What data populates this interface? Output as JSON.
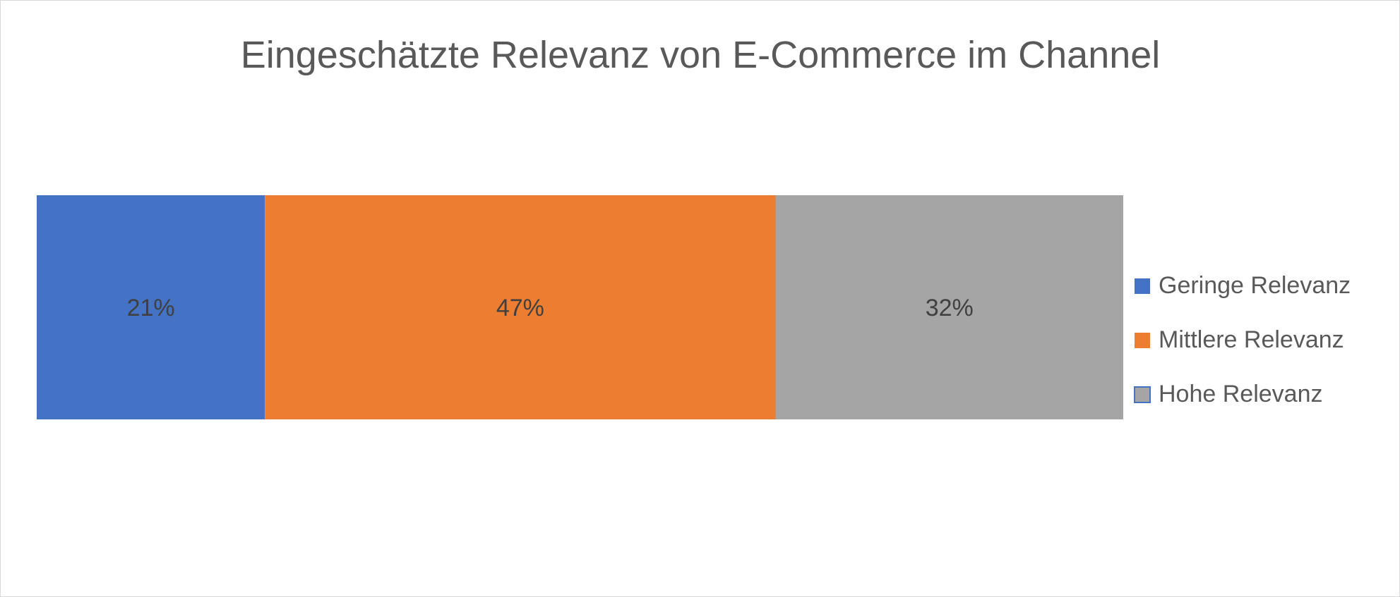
{
  "chart_data": {
    "type": "bar",
    "orientation": "horizontal",
    "stacked": "100%",
    "title": "Eingeschätzte Relevanz von E-Commerce im Channel",
    "xlabel": "",
    "ylabel": "",
    "xlim": [
      0,
      100
    ],
    "unit": "%",
    "grid": false,
    "legend_position": "right",
    "series": [
      {
        "name": "Geringe Relevanz",
        "values": [
          21
        ],
        "label": "21%",
        "color": "#4472C4"
      },
      {
        "name": "Mittlere Relevanz",
        "values": [
          47
        ],
        "label": "47%",
        "color": "#ED7D31"
      },
      {
        "name": "Hohe Relevanz",
        "values": [
          32
        ],
        "label": "32%",
        "color": "#A5A5A5"
      }
    ]
  }
}
